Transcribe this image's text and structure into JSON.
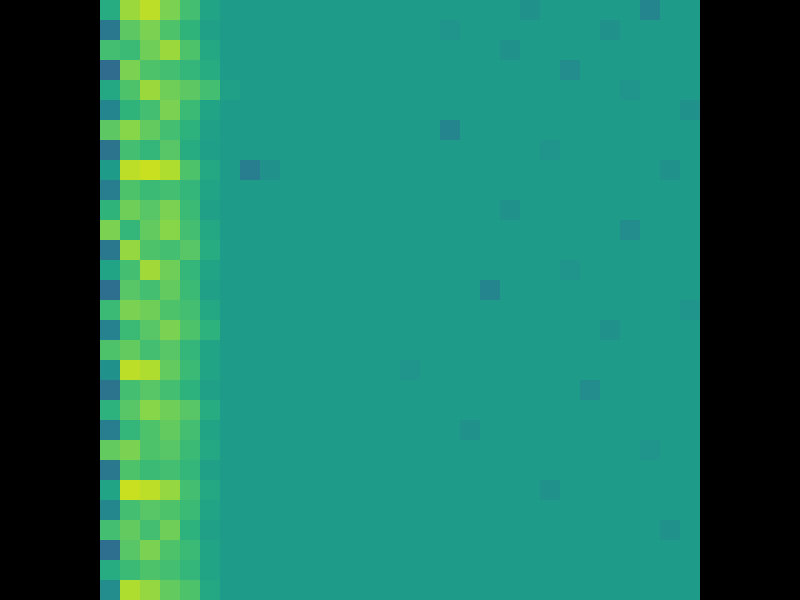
{
  "chart_data": {
    "type": "heatmap",
    "color": "Viridis",
    "tick_labels": false,
    "zlim": [
      0,
      1
    ],
    "z": [
      [
        0.62,
        0.85,
        0.9,
        0.8,
        0.7,
        0.58,
        0.55,
        0.55,
        0.55,
        0.55,
        0.55,
        0.55,
        0.55,
        0.55,
        0.55,
        0.55,
        0.55,
        0.55,
        0.55,
        0.55,
        0.55,
        0.5,
        0.55,
        0.55,
        0.55,
        0.55,
        0.55,
        0.45,
        0.55,
        0.55
      ],
      [
        0.4,
        0.75,
        0.8,
        0.72,
        0.65,
        0.57,
        0.55,
        0.55,
        0.55,
        0.55,
        0.55,
        0.55,
        0.55,
        0.55,
        0.55,
        0.55,
        0.55,
        0.52,
        0.55,
        0.55,
        0.55,
        0.55,
        0.55,
        0.55,
        0.55,
        0.5,
        0.55,
        0.55,
        0.55,
        0.55
      ],
      [
        0.7,
        0.68,
        0.78,
        0.85,
        0.72,
        0.6,
        0.55,
        0.55,
        0.55,
        0.55,
        0.55,
        0.55,
        0.55,
        0.55,
        0.55,
        0.55,
        0.55,
        0.55,
        0.55,
        0.55,
        0.5,
        0.55,
        0.55,
        0.55,
        0.55,
        0.55,
        0.55,
        0.55,
        0.55,
        0.55
      ],
      [
        0.35,
        0.8,
        0.72,
        0.7,
        0.66,
        0.62,
        0.55,
        0.55,
        0.55,
        0.55,
        0.55,
        0.55,
        0.55,
        0.55,
        0.55,
        0.55,
        0.55,
        0.55,
        0.55,
        0.55,
        0.55,
        0.55,
        0.55,
        0.48,
        0.55,
        0.55,
        0.55,
        0.55,
        0.55,
        0.55
      ],
      [
        0.6,
        0.72,
        0.85,
        0.78,
        0.75,
        0.7,
        0.57,
        0.55,
        0.55,
        0.55,
        0.55,
        0.55,
        0.55,
        0.55,
        0.55,
        0.55,
        0.55,
        0.55,
        0.55,
        0.55,
        0.55,
        0.55,
        0.55,
        0.55,
        0.55,
        0.55,
        0.52,
        0.55,
        0.55,
        0.55
      ],
      [
        0.45,
        0.65,
        0.7,
        0.8,
        0.68,
        0.58,
        0.55,
        0.55,
        0.55,
        0.55,
        0.55,
        0.55,
        0.55,
        0.55,
        0.55,
        0.55,
        0.55,
        0.55,
        0.55,
        0.55,
        0.55,
        0.55,
        0.55,
        0.55,
        0.55,
        0.55,
        0.55,
        0.55,
        0.55,
        0.5
      ],
      [
        0.75,
        0.82,
        0.76,
        0.7,
        0.64,
        0.57,
        0.55,
        0.55,
        0.55,
        0.55,
        0.55,
        0.55,
        0.55,
        0.55,
        0.55,
        0.55,
        0.55,
        0.45,
        0.55,
        0.55,
        0.55,
        0.55,
        0.55,
        0.55,
        0.55,
        0.55,
        0.55,
        0.55,
        0.55,
        0.55
      ],
      [
        0.38,
        0.7,
        0.66,
        0.74,
        0.62,
        0.56,
        0.55,
        0.55,
        0.55,
        0.55,
        0.55,
        0.55,
        0.55,
        0.55,
        0.55,
        0.55,
        0.55,
        0.55,
        0.55,
        0.55,
        0.55,
        0.55,
        0.52,
        0.55,
        0.55,
        0.55,
        0.55,
        0.55,
        0.55,
        0.55
      ],
      [
        0.55,
        0.9,
        0.92,
        0.88,
        0.72,
        0.6,
        0.55,
        0.42,
        0.5,
        0.55,
        0.55,
        0.55,
        0.55,
        0.55,
        0.55,
        0.55,
        0.55,
        0.55,
        0.55,
        0.55,
        0.55,
        0.55,
        0.55,
        0.55,
        0.55,
        0.55,
        0.55,
        0.55,
        0.5,
        0.55
      ],
      [
        0.42,
        0.72,
        0.68,
        0.7,
        0.66,
        0.58,
        0.55,
        0.55,
        0.55,
        0.55,
        0.55,
        0.55,
        0.55,
        0.55,
        0.55,
        0.55,
        0.55,
        0.55,
        0.55,
        0.55,
        0.55,
        0.55,
        0.55,
        0.55,
        0.55,
        0.55,
        0.55,
        0.55,
        0.55,
        0.55
      ],
      [
        0.65,
        0.78,
        0.74,
        0.8,
        0.68,
        0.57,
        0.55,
        0.55,
        0.55,
        0.55,
        0.55,
        0.55,
        0.55,
        0.55,
        0.55,
        0.55,
        0.55,
        0.55,
        0.55,
        0.55,
        0.5,
        0.55,
        0.55,
        0.55,
        0.55,
        0.55,
        0.55,
        0.55,
        0.55,
        0.55
      ],
      [
        0.8,
        0.66,
        0.76,
        0.82,
        0.7,
        0.6,
        0.55,
        0.55,
        0.55,
        0.55,
        0.55,
        0.55,
        0.55,
        0.55,
        0.55,
        0.55,
        0.55,
        0.55,
        0.55,
        0.55,
        0.55,
        0.55,
        0.55,
        0.55,
        0.55,
        0.55,
        0.48,
        0.55,
        0.55,
        0.55
      ],
      [
        0.4,
        0.84,
        0.72,
        0.7,
        0.74,
        0.62,
        0.55,
        0.55,
        0.55,
        0.55,
        0.55,
        0.55,
        0.55,
        0.55,
        0.55,
        0.55,
        0.55,
        0.55,
        0.55,
        0.55,
        0.55,
        0.55,
        0.55,
        0.55,
        0.55,
        0.55,
        0.55,
        0.55,
        0.55,
        0.55
      ],
      [
        0.58,
        0.7,
        0.86,
        0.78,
        0.66,
        0.58,
        0.55,
        0.55,
        0.55,
        0.55,
        0.55,
        0.55,
        0.55,
        0.55,
        0.55,
        0.55,
        0.55,
        0.55,
        0.55,
        0.55,
        0.55,
        0.55,
        0.55,
        0.52,
        0.55,
        0.55,
        0.55,
        0.55,
        0.55,
        0.55
      ],
      [
        0.36,
        0.74,
        0.7,
        0.76,
        0.68,
        0.57,
        0.55,
        0.55,
        0.55,
        0.55,
        0.55,
        0.55,
        0.55,
        0.55,
        0.55,
        0.55,
        0.55,
        0.55,
        0.55,
        0.45,
        0.55,
        0.55,
        0.55,
        0.55,
        0.55,
        0.55,
        0.55,
        0.55,
        0.55,
        0.55
      ],
      [
        0.68,
        0.8,
        0.78,
        0.72,
        0.7,
        0.6,
        0.55,
        0.55,
        0.55,
        0.55,
        0.55,
        0.55,
        0.55,
        0.55,
        0.55,
        0.55,
        0.55,
        0.55,
        0.55,
        0.55,
        0.55,
        0.55,
        0.55,
        0.55,
        0.55,
        0.55,
        0.55,
        0.55,
        0.55,
        0.52
      ],
      [
        0.44,
        0.68,
        0.74,
        0.8,
        0.72,
        0.64,
        0.55,
        0.55,
        0.55,
        0.55,
        0.55,
        0.55,
        0.55,
        0.55,
        0.55,
        0.55,
        0.55,
        0.55,
        0.55,
        0.55,
        0.55,
        0.55,
        0.55,
        0.55,
        0.55,
        0.5,
        0.55,
        0.55,
        0.55,
        0.55
      ],
      [
        0.72,
        0.76,
        0.7,
        0.74,
        0.66,
        0.58,
        0.55,
        0.55,
        0.55,
        0.55,
        0.55,
        0.55,
        0.55,
        0.55,
        0.55,
        0.55,
        0.55,
        0.55,
        0.55,
        0.55,
        0.55,
        0.55,
        0.55,
        0.55,
        0.55,
        0.55,
        0.55,
        0.55,
        0.55,
        0.55
      ],
      [
        0.5,
        0.9,
        0.88,
        0.76,
        0.68,
        0.58,
        0.55,
        0.55,
        0.55,
        0.55,
        0.55,
        0.55,
        0.55,
        0.55,
        0.55,
        0.52,
        0.55,
        0.55,
        0.55,
        0.55,
        0.55,
        0.55,
        0.55,
        0.55,
        0.55,
        0.55,
        0.55,
        0.55,
        0.55,
        0.55
      ],
      [
        0.38,
        0.7,
        0.74,
        0.7,
        0.64,
        0.57,
        0.55,
        0.55,
        0.55,
        0.55,
        0.55,
        0.55,
        0.55,
        0.55,
        0.55,
        0.55,
        0.55,
        0.55,
        0.55,
        0.55,
        0.55,
        0.55,
        0.55,
        0.55,
        0.48,
        0.55,
        0.55,
        0.55,
        0.55,
        0.55
      ],
      [
        0.64,
        0.74,
        0.82,
        0.78,
        0.74,
        0.62,
        0.55,
        0.55,
        0.55,
        0.55,
        0.55,
        0.55,
        0.55,
        0.55,
        0.55,
        0.55,
        0.55,
        0.55,
        0.55,
        0.55,
        0.55,
        0.55,
        0.55,
        0.55,
        0.55,
        0.55,
        0.55,
        0.55,
        0.55,
        0.55
      ],
      [
        0.42,
        0.66,
        0.72,
        0.76,
        0.7,
        0.58,
        0.55,
        0.55,
        0.55,
        0.55,
        0.55,
        0.55,
        0.55,
        0.55,
        0.55,
        0.55,
        0.55,
        0.55,
        0.5,
        0.55,
        0.55,
        0.55,
        0.55,
        0.55,
        0.55,
        0.55,
        0.55,
        0.55,
        0.55,
        0.55
      ],
      [
        0.76,
        0.8,
        0.72,
        0.74,
        0.68,
        0.6,
        0.55,
        0.55,
        0.55,
        0.55,
        0.55,
        0.55,
        0.55,
        0.55,
        0.55,
        0.55,
        0.55,
        0.55,
        0.55,
        0.55,
        0.55,
        0.55,
        0.55,
        0.55,
        0.55,
        0.55,
        0.55,
        0.52,
        0.55,
        0.55
      ],
      [
        0.4,
        0.72,
        0.68,
        0.7,
        0.66,
        0.57,
        0.55,
        0.55,
        0.55,
        0.55,
        0.55,
        0.55,
        0.55,
        0.55,
        0.55,
        0.55,
        0.55,
        0.55,
        0.55,
        0.55,
        0.55,
        0.55,
        0.55,
        0.55,
        0.55,
        0.55,
        0.55,
        0.55,
        0.55,
        0.55
      ],
      [
        0.58,
        0.92,
        0.9,
        0.84,
        0.7,
        0.6,
        0.55,
        0.55,
        0.55,
        0.55,
        0.55,
        0.55,
        0.55,
        0.55,
        0.55,
        0.55,
        0.55,
        0.55,
        0.55,
        0.55,
        0.55,
        0.55,
        0.5,
        0.55,
        0.55,
        0.55,
        0.55,
        0.55,
        0.55,
        0.55
      ],
      [
        0.46,
        0.7,
        0.74,
        0.72,
        0.68,
        0.58,
        0.55,
        0.55,
        0.55,
        0.55,
        0.55,
        0.55,
        0.55,
        0.55,
        0.55,
        0.55,
        0.55,
        0.55,
        0.55,
        0.55,
        0.55,
        0.55,
        0.55,
        0.55,
        0.55,
        0.55,
        0.55,
        0.55,
        0.55,
        0.55
      ],
      [
        0.7,
        0.76,
        0.7,
        0.78,
        0.64,
        0.57,
        0.55,
        0.55,
        0.55,
        0.55,
        0.55,
        0.55,
        0.55,
        0.55,
        0.55,
        0.55,
        0.55,
        0.55,
        0.55,
        0.55,
        0.55,
        0.55,
        0.55,
        0.55,
        0.55,
        0.55,
        0.55,
        0.55,
        0.5,
        0.55
      ],
      [
        0.36,
        0.74,
        0.8,
        0.72,
        0.68,
        0.58,
        0.55,
        0.55,
        0.55,
        0.55,
        0.55,
        0.55,
        0.55,
        0.55,
        0.55,
        0.55,
        0.55,
        0.55,
        0.55,
        0.55,
        0.55,
        0.55,
        0.55,
        0.55,
        0.55,
        0.55,
        0.55,
        0.55,
        0.55,
        0.55
      ],
      [
        0.62,
        0.68,
        0.72,
        0.7,
        0.66,
        0.58,
        0.55,
        0.55,
        0.55,
        0.55,
        0.55,
        0.55,
        0.55,
        0.55,
        0.55,
        0.55,
        0.55,
        0.55,
        0.55,
        0.55,
        0.55,
        0.55,
        0.55,
        0.55,
        0.55,
        0.55,
        0.55,
        0.55,
        0.55,
        0.55
      ],
      [
        0.48,
        0.88,
        0.84,
        0.76,
        0.72,
        0.6,
        0.55,
        0.55,
        0.55,
        0.55,
        0.55,
        0.55,
        0.55,
        0.55,
        0.55,
        0.55,
        0.55,
        0.55,
        0.55,
        0.55,
        0.55,
        0.55,
        0.55,
        0.55,
        0.55,
        0.55,
        0.55,
        0.55,
        0.55,
        0.55
      ]
    ]
  }
}
